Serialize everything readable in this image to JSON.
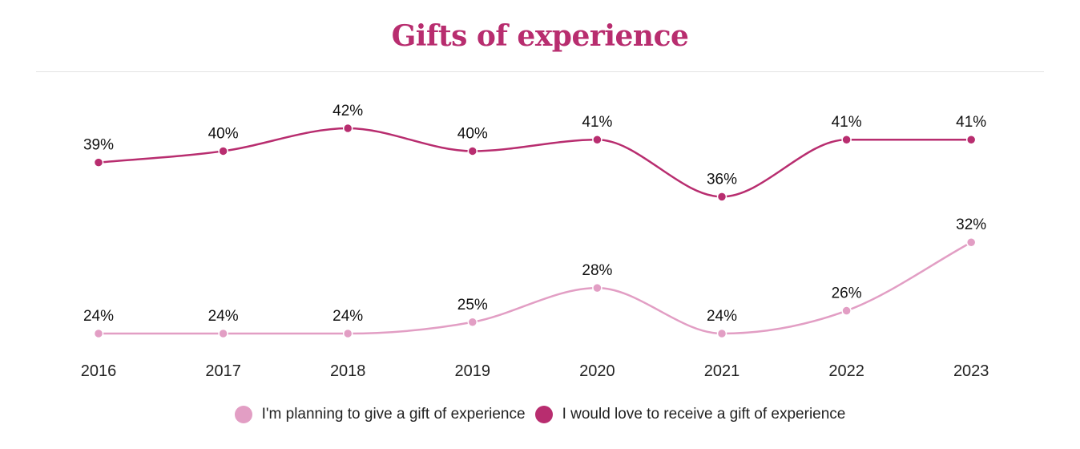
{
  "chart_data": {
    "type": "line",
    "title": "Gifts of experience",
    "categories": [
      "2016",
      "2017",
      "2018",
      "2019",
      "2020",
      "2021",
      "2022",
      "2023"
    ],
    "series": [
      {
        "name": "I'm planning to give a gift of experience",
        "values": [
          24,
          24,
          24,
          25,
          28,
          24,
          26,
          32
        ],
        "labels": [
          "24%",
          "24%",
          "24%",
          "25%",
          "28%",
          "24%",
          "26%",
          "32%"
        ],
        "color": "#e29ec4"
      },
      {
        "name": "I would love to receive a gift of experience",
        "values": [
          39,
          40,
          42,
          40,
          41,
          36,
          41,
          41
        ],
        "labels": [
          "39%",
          "40%",
          "42%",
          "40%",
          "41%",
          "36%",
          "41%",
          "41%"
        ],
        "color": "#b82d6f"
      }
    ],
    "xlabel": "",
    "ylabel": "",
    "ylim": [
      24,
      42
    ],
    "grid": false,
    "legend_position": "bottom"
  },
  "colors": {
    "title": "#b82d6f",
    "label_text": "#111111",
    "axis_text": "#222222"
  }
}
